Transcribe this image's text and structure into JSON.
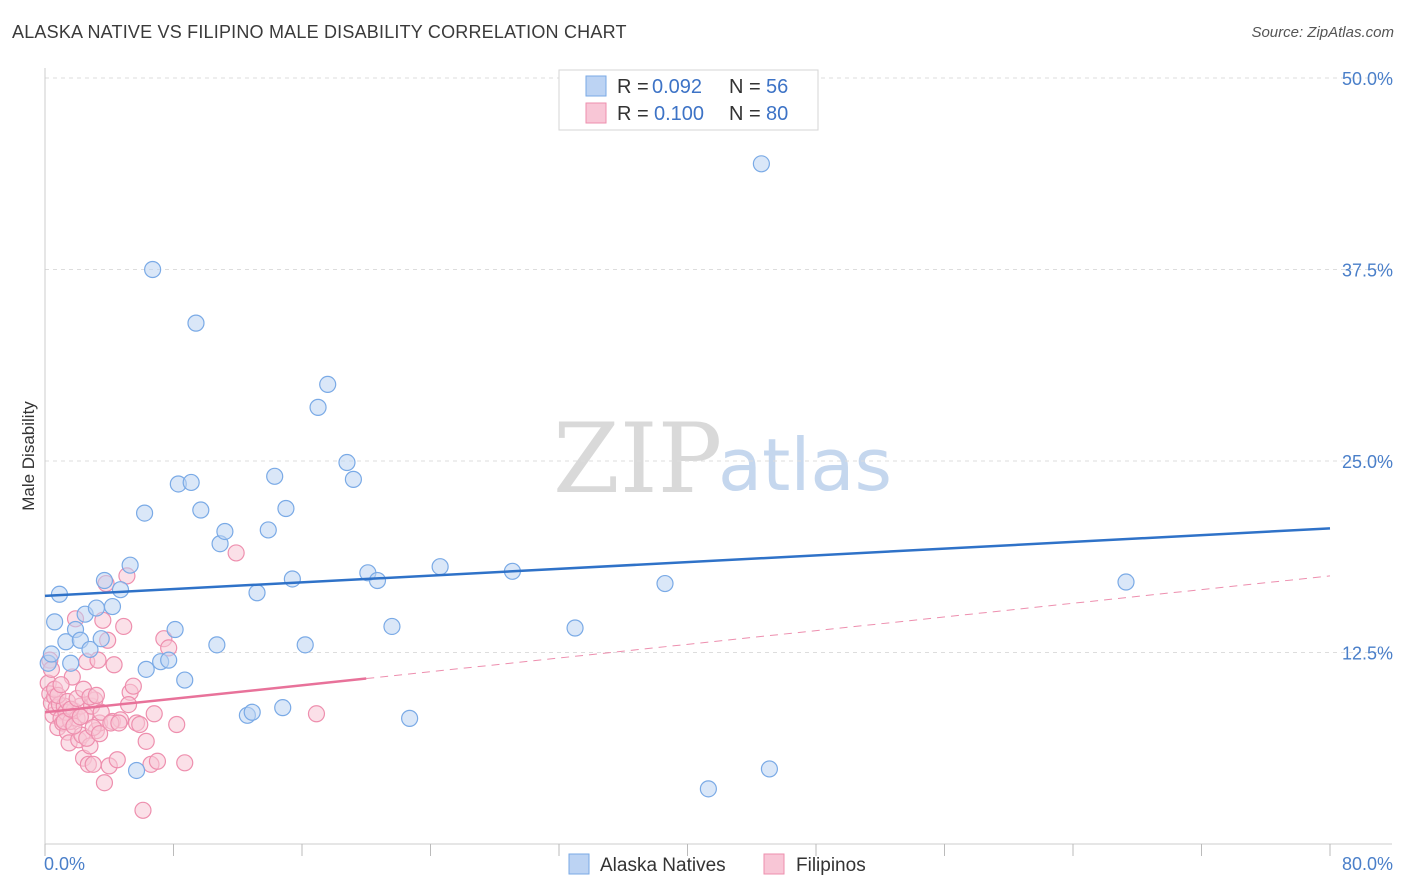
{
  "title": "ALASKA NATIVE VS FILIPINO MALE DISABILITY CORRELATION CHART",
  "source": "Source: ZipAtlas.com",
  "watermark": {
    "zip": "ZIP",
    "atlas": "atlas"
  },
  "colors": {
    "blue": "#7aaae6",
    "blue_fill": "#bcd3f3",
    "blue_line": "#2f72c8",
    "pink": "#ee8fae",
    "pink_fill": "#f8c6d6",
    "pink_line": "#e8729a",
    "axis_label": "#4a7fc9",
    "grid": "#dddddd"
  },
  "chart_data": {
    "type": "scatter",
    "xlabel": "",
    "ylabel": "Male Disability",
    "xlim": [
      0,
      80
    ],
    "ylim": [
      0,
      50
    ],
    "x_tick_labels": {
      "min": "0.0%",
      "max": "80.0%"
    },
    "y_ticks": [
      {
        "value": 12.5,
        "label": "12.5%"
      },
      {
        "value": 25.0,
        "label": "25.0%"
      },
      {
        "value": 37.5,
        "label": "37.5%"
      },
      {
        "value": 50.0,
        "label": "50.0%"
      }
    ],
    "legend": [
      {
        "r_label": "R = ",
        "r_value": "0.092",
        "n_label": "N = ",
        "n_value": "56"
      },
      {
        "r_label": "R = ",
        "r_value": "0.100",
        "n_label": "N = ",
        "n_value": "80"
      }
    ],
    "series": [
      {
        "name": "Alaska Natives",
        "trend": {
          "x": [
            0,
            80
          ],
          "y": [
            16.2,
            20.6
          ],
          "dashed_extension": false
        },
        "points": [
          [
            0.6,
            14.5
          ],
          [
            0.9,
            16.3
          ],
          [
            1.3,
            13.2
          ],
          [
            1.6,
            11.8
          ],
          [
            1.9,
            14.0
          ],
          [
            2.2,
            13.3
          ],
          [
            2.5,
            15.0
          ],
          [
            2.8,
            12.7
          ],
          [
            3.2,
            15.4
          ],
          [
            3.5,
            13.4
          ],
          [
            3.7,
            17.2
          ],
          [
            4.2,
            15.5
          ],
          [
            4.7,
            16.6
          ],
          [
            5.3,
            18.2
          ],
          [
            5.7,
            4.8
          ],
          [
            6.2,
            21.6
          ],
          [
            6.3,
            11.4
          ],
          [
            6.7,
            37.5
          ],
          [
            7.2,
            11.9
          ],
          [
            7.7,
            12.0
          ],
          [
            8.1,
            14.0
          ],
          [
            8.3,
            23.5
          ],
          [
            8.7,
            10.7
          ],
          [
            9.1,
            23.6
          ],
          [
            9.4,
            34.0
          ],
          [
            9.7,
            21.8
          ],
          [
            10.7,
            13.0
          ],
          [
            10.9,
            19.6
          ],
          [
            11.2,
            20.4
          ],
          [
            12.6,
            8.4
          ],
          [
            12.9,
            8.6
          ],
          [
            13.2,
            16.4
          ],
          [
            13.9,
            20.5
          ],
          [
            14.3,
            24.0
          ],
          [
            14.8,
            8.9
          ],
          [
            15.0,
            21.9
          ],
          [
            15.4,
            17.3
          ],
          [
            16.2,
            13.0
          ],
          [
            17.0,
            28.5
          ],
          [
            17.6,
            30.0
          ],
          [
            18.8,
            24.9
          ],
          [
            19.2,
            23.8
          ],
          [
            20.1,
            17.7
          ],
          [
            20.7,
            17.2
          ],
          [
            21.6,
            14.2
          ],
          [
            22.7,
            8.2
          ],
          [
            24.6,
            18.1
          ],
          [
            29.1,
            17.8
          ],
          [
            33.0,
            14.1
          ],
          [
            38.6,
            17.0
          ],
          [
            41.3,
            3.6
          ],
          [
            44.6,
            44.4
          ],
          [
            45.1,
            4.9
          ],
          [
            67.3,
            17.1
          ],
          [
            0.2,
            11.8
          ],
          [
            0.4,
            12.4
          ]
        ]
      },
      {
        "name": "Filipinos",
        "trend": {
          "x": [
            0,
            20
          ],
          "y": [
            8.6,
            10.8
          ],
          "dashed_extension": true,
          "extension_to": [
            80,
            17.5
          ]
        },
        "points": [
          [
            0.2,
            10.5
          ],
          [
            0.3,
            9.8
          ],
          [
            0.4,
            9.2
          ],
          [
            0.5,
            8.4
          ],
          [
            0.6,
            9.6
          ],
          [
            0.7,
            8.9
          ],
          [
            0.8,
            7.6
          ],
          [
            0.9,
            9.1
          ],
          [
            1.0,
            8.2
          ],
          [
            1.1,
            7.9
          ],
          [
            1.2,
            9.0
          ],
          [
            1.3,
            8.6
          ],
          [
            1.4,
            7.3
          ],
          [
            1.5,
            6.6
          ],
          [
            1.6,
            8.0
          ],
          [
            1.7,
            10.9
          ],
          [
            1.8,
            8.7
          ],
          [
            1.9,
            14.7
          ],
          [
            2.0,
            8.2
          ],
          [
            2.1,
            6.8
          ],
          [
            2.2,
            9.0
          ],
          [
            2.3,
            7.1
          ],
          [
            2.4,
            5.6
          ],
          [
            2.5,
            8.4
          ],
          [
            2.6,
            11.9
          ],
          [
            2.7,
            5.2
          ],
          [
            2.8,
            6.4
          ],
          [
            2.9,
            9.0
          ],
          [
            3.0,
            5.2
          ],
          [
            3.1,
            9.4
          ],
          [
            3.2,
            7.4
          ],
          [
            3.3,
            12.0
          ],
          [
            3.4,
            7.9
          ],
          [
            3.5,
            8.6
          ],
          [
            3.6,
            14.6
          ],
          [
            3.7,
            4.0
          ],
          [
            3.8,
            17.0
          ],
          [
            3.9,
            13.3
          ],
          [
            4.0,
            5.1
          ],
          [
            4.2,
            8.0
          ],
          [
            4.3,
            11.7
          ],
          [
            4.5,
            5.5
          ],
          [
            4.7,
            8.1
          ],
          [
            4.9,
            14.2
          ],
          [
            5.1,
            17.5
          ],
          [
            5.3,
            9.9
          ],
          [
            5.5,
            10.3
          ],
          [
            5.7,
            7.9
          ],
          [
            5.9,
            7.8
          ],
          [
            6.1,
            2.2
          ],
          [
            6.3,
            6.7
          ],
          [
            6.6,
            5.2
          ],
          [
            7.0,
            5.4
          ],
          [
            7.4,
            13.4
          ],
          [
            7.7,
            12.8
          ],
          [
            8.2,
            7.8
          ],
          [
            8.7,
            5.3
          ],
          [
            11.9,
            19.0
          ],
          [
            16.9,
            8.5
          ],
          [
            0.3,
            12.0
          ],
          [
            0.4,
            11.4
          ],
          [
            0.6,
            10.1
          ],
          [
            0.8,
            9.7
          ],
          [
            1.0,
            10.4
          ],
          [
            1.2,
            8.0
          ],
          [
            1.4,
            9.3
          ],
          [
            1.6,
            8.8
          ],
          [
            1.8,
            7.7
          ],
          [
            2.0,
            9.5
          ],
          [
            2.2,
            8.3
          ],
          [
            2.4,
            10.1
          ],
          [
            2.6,
            6.9
          ],
          [
            2.8,
            9.6
          ],
          [
            3.0,
            7.6
          ],
          [
            3.2,
            9.7
          ],
          [
            3.4,
            7.2
          ],
          [
            4.1,
            7.9
          ],
          [
            4.6,
            7.9
          ],
          [
            5.2,
            9.1
          ],
          [
            6.8,
            8.5
          ]
        ]
      }
    ]
  }
}
